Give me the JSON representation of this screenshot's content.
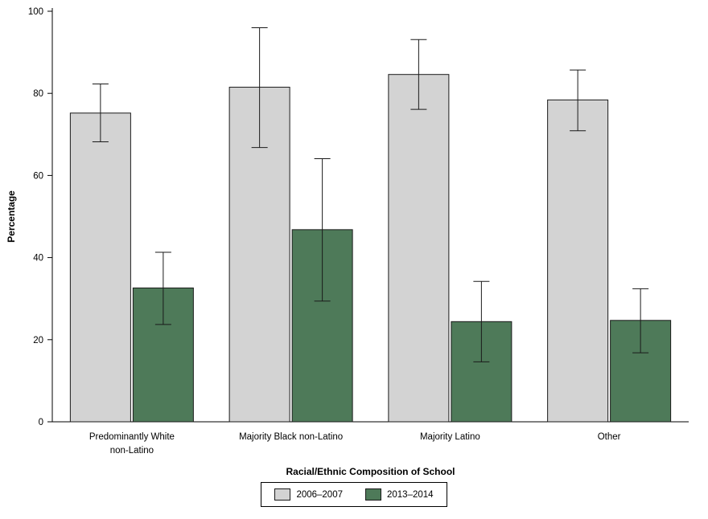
{
  "chart_data": {
    "type": "bar",
    "title": "",
    "xlabel": "Racial/Ethnic Composition of School",
    "ylabel": "Percentage",
    "ylim": [
      0,
      100
    ],
    "yticks": [
      0,
      20,
      40,
      60,
      80,
      100
    ],
    "grid": false,
    "legend_position": "bottom",
    "categories": [
      "Predominantly White non-Latino",
      "Majority Black non-Latino",
      "Majority Latino",
      "Other"
    ],
    "category_lines": [
      [
        "Predominantly White",
        "non-Latino"
      ],
      [
        "Majority Black non-Latino"
      ],
      [
        "Majority Latino"
      ],
      [
        "Other"
      ]
    ],
    "series": [
      {
        "name": "2006–2007",
        "color": "#d3d3d3",
        "values": [
          75.2,
          81.5,
          84.6,
          78.4
        ],
        "err_lo": [
          68.2,
          66.8,
          76.1,
          70.9
        ],
        "err_hi": [
          82.3,
          96.0,
          93.1,
          85.7
        ]
      },
      {
        "name": "2013–2014",
        "color": "#4e7a59",
        "values": [
          32.6,
          46.8,
          24.4,
          24.7
        ],
        "err_lo": [
          23.7,
          29.4,
          14.6,
          16.8
        ],
        "err_hi": [
          41.3,
          64.1,
          34.2,
          32.4
        ]
      }
    ]
  },
  "colors": {
    "axis": "#000000",
    "bar_stroke": "#1a1a1a",
    "background": "#ffffff"
  }
}
